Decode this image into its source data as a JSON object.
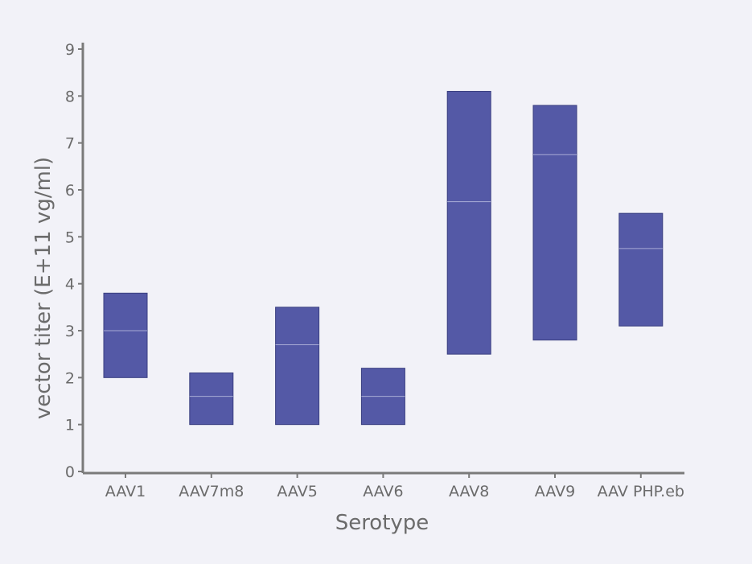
{
  "chart_data": {
    "type": "bar",
    "subtype": "floating-bar-range",
    "xlabel": "Serotype",
    "ylabel": "vector titer (E+11 vg/ml)",
    "ylim": [
      0,
      9
    ],
    "yticks": [
      "0",
      "1",
      "2",
      "3",
      "4",
      "5",
      "6",
      "7",
      "8",
      "9"
    ],
    "categories": [
      "AAV1",
      "AAV7m8",
      "AAV5",
      "AAV6",
      "AAV8",
      "AAV9",
      "AAV PHP.eb"
    ],
    "series": [
      {
        "low": 2.0,
        "high": 3.8,
        "median": 3.0
      },
      {
        "low": 1.0,
        "high": 2.1,
        "median": 1.6
      },
      {
        "low": 1.0,
        "high": 3.5,
        "median": 2.7
      },
      {
        "low": 1.0,
        "high": 2.2,
        "median": 1.6
      },
      {
        "low": 2.5,
        "high": 8.1,
        "median": 5.75
      },
      {
        "low": 2.8,
        "high": 7.8,
        "median": 6.75
      },
      {
        "low": 3.1,
        "high": 5.5,
        "median": 4.75
      }
    ],
    "bar_color": "#5459a6",
    "median_color": "#a9acd6",
    "grid": false,
    "legend": "none"
  }
}
